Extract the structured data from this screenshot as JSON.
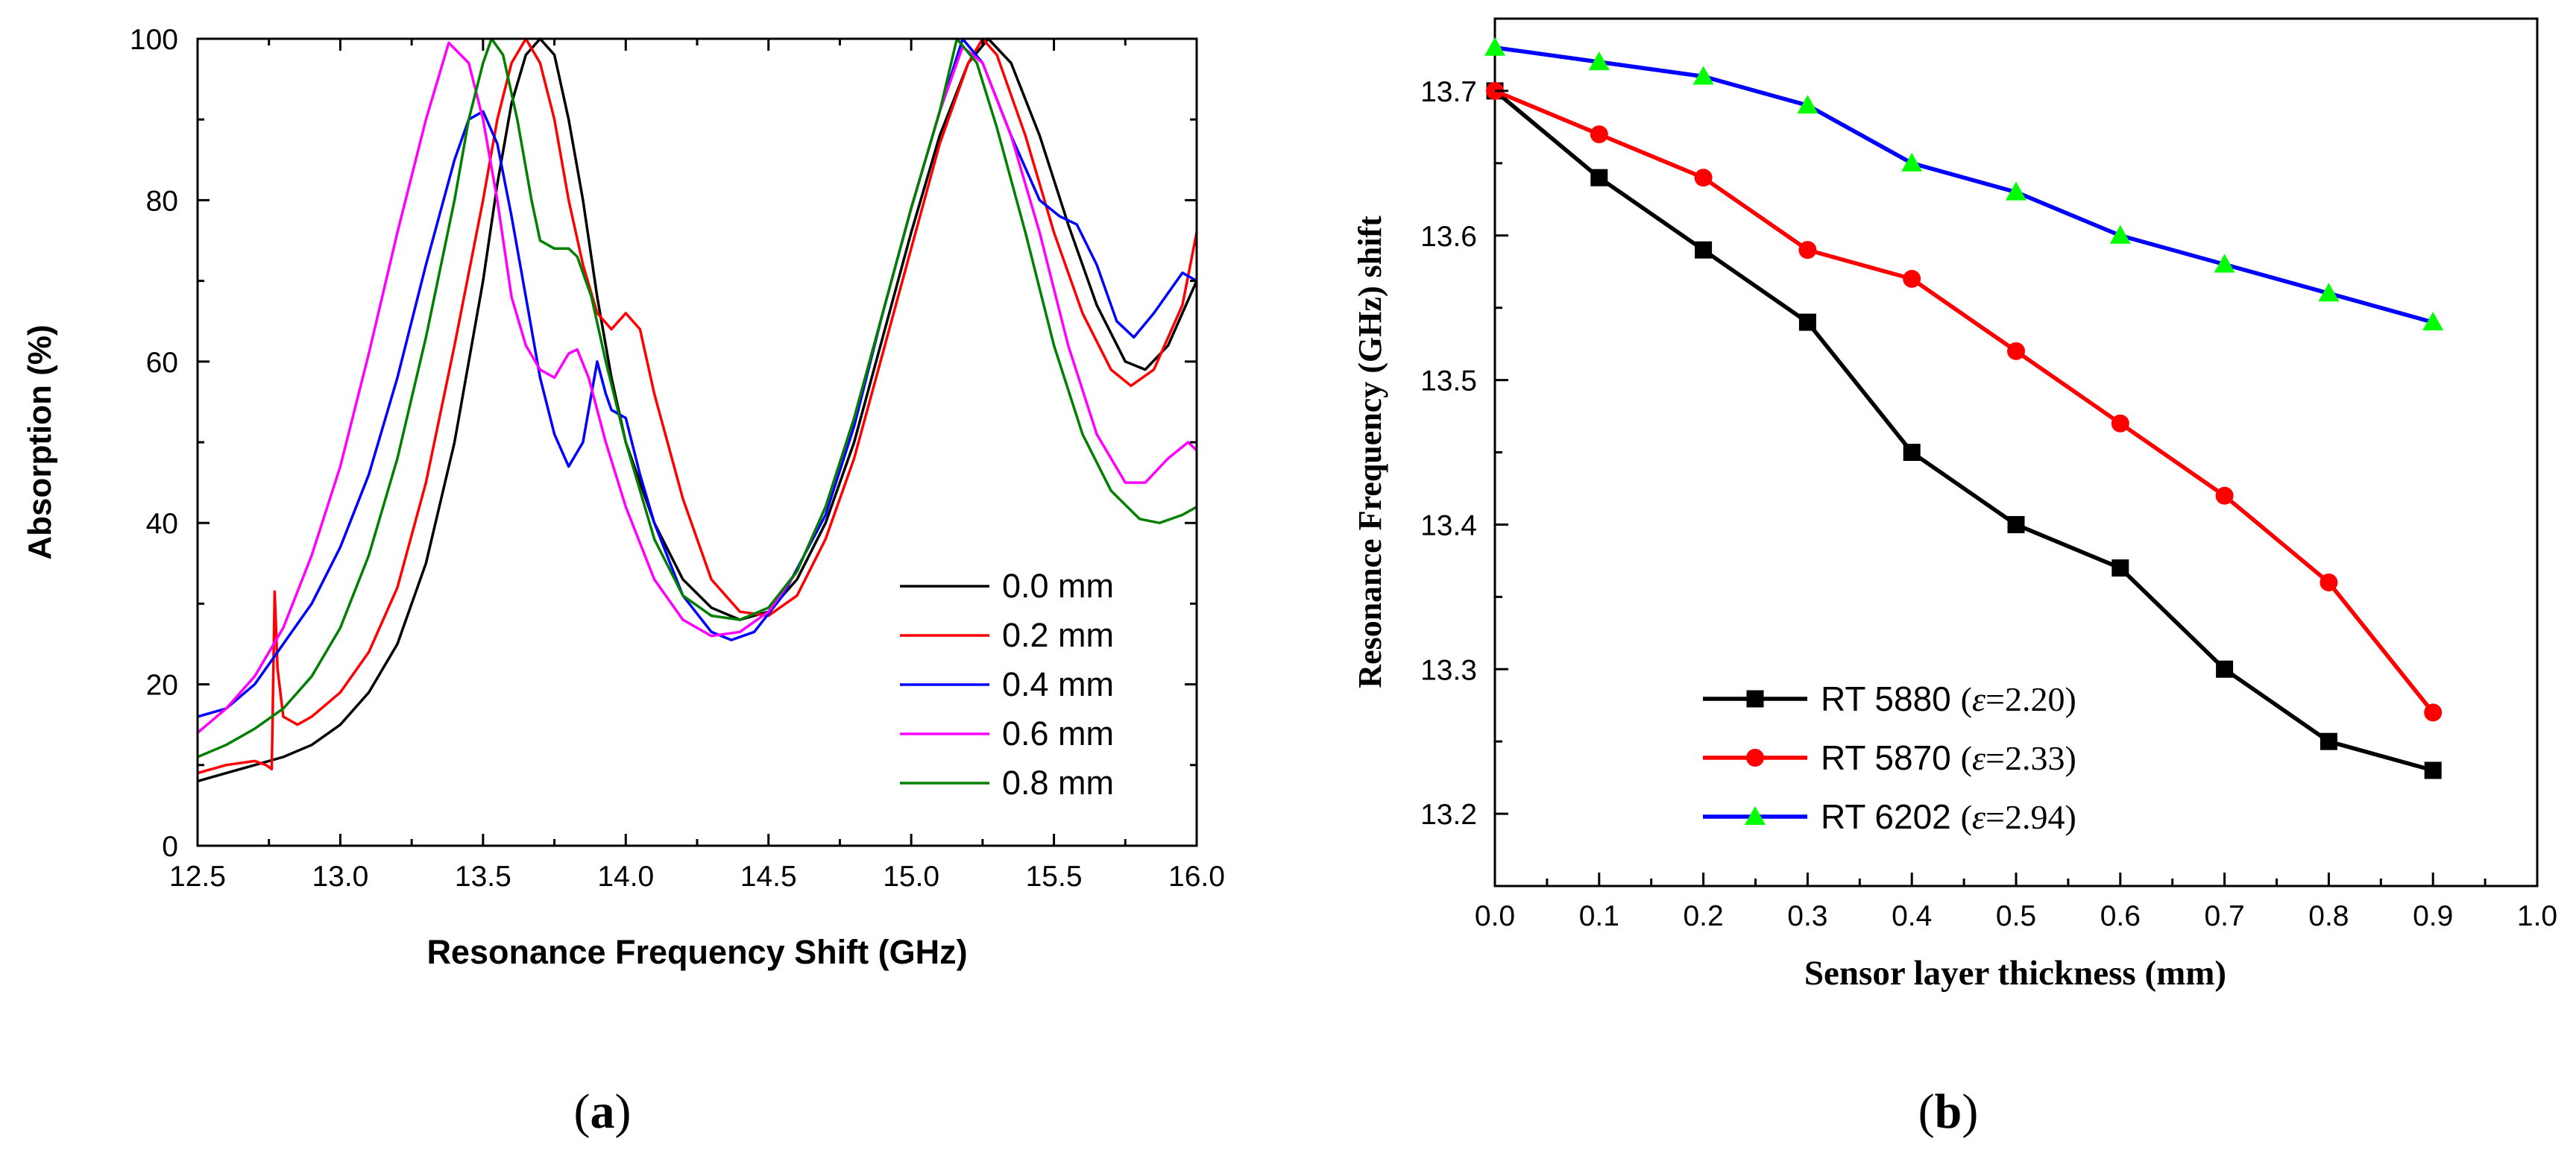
{
  "chart_data": [
    {
      "type": "line",
      "panel_label": "(a)",
      "panel_letter": "a",
      "title": "",
      "xlabel": "Resonance Frequency Shift (GHz)",
      "ylabel": "Absorption (%)",
      "xlim": [
        12.5,
        16.0
      ],
      "ylim": [
        0,
        100
      ],
      "xticks": [
        12.5,
        13.0,
        13.5,
        14.0,
        14.5,
        15.0,
        15.5,
        16.0
      ],
      "xtick_labels": [
        "12.5",
        "13.0",
        "13.5",
        "14.0",
        "14.5",
        "15.0",
        "15.5",
        "16.0"
      ],
      "yticks": [
        0,
        20,
        40,
        60,
        80,
        100
      ],
      "ytick_labels": [
        "0",
        "20",
        "40",
        "60",
        "80",
        "100"
      ],
      "legend_position": "center-right",
      "series": [
        {
          "name": "0.0 mm",
          "color": "#000000",
          "points": [
            [
              12.5,
              8
            ],
            [
              12.6,
              9
            ],
            [
              12.7,
              10
            ],
            [
              12.8,
              11
            ],
            [
              12.9,
              12.5
            ],
            [
              13.0,
              15
            ],
            [
              13.1,
              19
            ],
            [
              13.2,
              25
            ],
            [
              13.3,
              35
            ],
            [
              13.4,
              50
            ],
            [
              13.5,
              70
            ],
            [
              13.55,
              82
            ],
            [
              13.6,
              92
            ],
            [
              13.65,
              98
            ],
            [
              13.7,
              100
            ],
            [
              13.75,
              98
            ],
            [
              13.8,
              90
            ],
            [
              13.85,
              80
            ],
            [
              13.9,
              68
            ],
            [
              13.95,
              58
            ],
            [
              14.0,
              50
            ],
            [
              14.1,
              40
            ],
            [
              14.2,
              33
            ],
            [
              14.3,
              29.5
            ],
            [
              14.4,
              28
            ],
            [
              14.5,
              29
            ],
            [
              14.6,
              33
            ],
            [
              14.7,
              40
            ],
            [
              14.8,
              50
            ],
            [
              14.9,
              63
            ],
            [
              15.0,
              76
            ],
            [
              15.1,
              88
            ],
            [
              15.2,
              97
            ],
            [
              15.27,
              100
            ],
            [
              15.35,
              97
            ],
            [
              15.45,
              88
            ],
            [
              15.55,
              77
            ],
            [
              15.65,
              67
            ],
            [
              15.75,
              60
            ],
            [
              15.82,
              59
            ],
            [
              15.9,
              62
            ],
            [
              16.0,
              70
            ]
          ]
        },
        {
          "name": "0.2 mm",
          "color": "#ff0000",
          "points": [
            [
              12.5,
              9
            ],
            [
              12.6,
              10
            ],
            [
              12.7,
              10.5
            ],
            [
              12.74,
              10
            ],
            [
              12.76,
              9.5
            ],
            [
              12.77,
              31.5
            ],
            [
              12.78,
              22
            ],
            [
              12.8,
              16
            ],
            [
              12.85,
              15
            ],
            [
              12.9,
              16
            ],
            [
              13.0,
              19
            ],
            [
              13.1,
              24
            ],
            [
              13.2,
              32
            ],
            [
              13.3,
              45
            ],
            [
              13.4,
              62
            ],
            [
              13.5,
              80
            ],
            [
              13.55,
              90
            ],
            [
              13.6,
              97
            ],
            [
              13.65,
              100
            ],
            [
              13.7,
              97
            ],
            [
              13.75,
              90
            ],
            [
              13.8,
              80
            ],
            [
              13.85,
              72
            ],
            [
              13.9,
              66
            ],
            [
              13.95,
              64
            ],
            [
              14.0,
              66
            ],
            [
              14.05,
              64
            ],
            [
              14.1,
              56
            ],
            [
              14.2,
              43
            ],
            [
              14.3,
              33
            ],
            [
              14.4,
              29
            ],
            [
              14.5,
              28.5
            ],
            [
              14.6,
              31
            ],
            [
              14.7,
              38
            ],
            [
              14.8,
              48
            ],
            [
              14.9,
              61
            ],
            [
              15.0,
              74
            ],
            [
              15.1,
              87
            ],
            [
              15.2,
              97
            ],
            [
              15.25,
              100
            ],
            [
              15.3,
              98
            ],
            [
              15.4,
              88
            ],
            [
              15.5,
              76
            ],
            [
              15.6,
              66
            ],
            [
              15.7,
              59
            ],
            [
              15.77,
              57
            ],
            [
              15.85,
              59
            ],
            [
              15.95,
              67
            ],
            [
              16.0,
              76
            ]
          ]
        },
        {
          "name": "0.4 mm",
          "color": "#0000ff",
          "points": [
            [
              12.5,
              16
            ],
            [
              12.6,
              17
            ],
            [
              12.7,
              20
            ],
            [
              12.8,
              25
            ],
            [
              12.9,
              30
            ],
            [
              13.0,
              37
            ],
            [
              13.1,
              46
            ],
            [
              13.2,
              58
            ],
            [
              13.3,
              72
            ],
            [
              13.4,
              85
            ],
            [
              13.45,
              90
            ],
            [
              13.5,
              91
            ],
            [
              13.55,
              87
            ],
            [
              13.6,
              78
            ],
            [
              13.65,
              68
            ],
            [
              13.7,
              58
            ],
            [
              13.75,
              51
            ],
            [
              13.8,
              47
            ],
            [
              13.85,
              50
            ],
            [
              13.88,
              56
            ],
            [
              13.9,
              60
            ],
            [
              13.93,
              56
            ],
            [
              13.95,
              54
            ],
            [
              14.0,
              53
            ],
            [
              14.05,
              46
            ],
            [
              14.1,
              40
            ],
            [
              14.2,
              31
            ],
            [
              14.3,
              26.5
            ],
            [
              14.37,
              25.5
            ],
            [
              14.45,
              26.5
            ],
            [
              14.55,
              31
            ],
            [
              14.7,
              41
            ],
            [
              14.8,
              52
            ],
            [
              14.9,
              66
            ],
            [
              15.0,
              79
            ],
            [
              15.1,
              91
            ],
            [
              15.18,
              100
            ],
            [
              15.25,
              97
            ],
            [
              15.35,
              88
            ],
            [
              15.45,
              80
            ],
            [
              15.52,
              78
            ],
            [
              15.58,
              77
            ],
            [
              15.65,
              72
            ],
            [
              15.72,
              65
            ],
            [
              15.78,
              63
            ],
            [
              15.85,
              66
            ],
            [
              15.95,
              71
            ],
            [
              16.0,
              70
            ]
          ]
        },
        {
          "name": "0.6 mm",
          "color": "#ff00ff",
          "points": [
            [
              12.5,
              14
            ],
            [
              12.6,
              17
            ],
            [
              12.7,
              21
            ],
            [
              12.8,
              27
            ],
            [
              12.9,
              36
            ],
            [
              13.0,
              47
            ],
            [
              13.1,
              61
            ],
            [
              13.2,
              76
            ],
            [
              13.3,
              90
            ],
            [
              13.38,
              99.5
            ],
            [
              13.45,
              97
            ],
            [
              13.5,
              90
            ],
            [
              13.55,
              80
            ],
            [
              13.6,
              68
            ],
            [
              13.65,
              62
            ],
            [
              13.7,
              59
            ],
            [
              13.75,
              58
            ],
            [
              13.8,
              61
            ],
            [
              13.83,
              61.5
            ],
            [
              13.87,
              58
            ],
            [
              13.93,
              50
            ],
            [
              14.0,
              42
            ],
            [
              14.1,
              33
            ],
            [
              14.2,
              28
            ],
            [
              14.3,
              26
            ],
            [
              14.4,
              26.5
            ],
            [
              14.5,
              29
            ],
            [
              14.6,
              34
            ],
            [
              14.7,
              42
            ],
            [
              14.8,
              53
            ],
            [
              14.9,
              66
            ],
            [
              15.0,
              79
            ],
            [
              15.1,
              91
            ],
            [
              15.18,
              99
            ],
            [
              15.25,
              97
            ],
            [
              15.35,
              88
            ],
            [
              15.45,
              76
            ],
            [
              15.55,
              62
            ],
            [
              15.65,
              51
            ],
            [
              15.75,
              45
            ],
            [
              15.82,
              45
            ],
            [
              15.9,
              48
            ],
            [
              15.97,
              50
            ],
            [
              16.0,
              49
            ]
          ]
        },
        {
          "name": "0.8 mm",
          "color": "#008000",
          "points": [
            [
              12.5,
              11
            ],
            [
              12.6,
              12.5
            ],
            [
              12.7,
              14.5
            ],
            [
              12.8,
              17
            ],
            [
              12.9,
              21
            ],
            [
              13.0,
              27
            ],
            [
              13.1,
              36
            ],
            [
              13.2,
              48
            ],
            [
              13.3,
              63
            ],
            [
              13.4,
              80
            ],
            [
              13.45,
              90
            ],
            [
              13.5,
              97
            ],
            [
              13.53,
              100
            ],
            [
              13.57,
              98
            ],
            [
              13.62,
              90
            ],
            [
              13.67,
              80
            ],
            [
              13.7,
              75
            ],
            [
              13.75,
              74
            ],
            [
              13.8,
              74
            ],
            [
              13.83,
              73
            ],
            [
              13.88,
              68
            ],
            [
              13.93,
              60
            ],
            [
              14.0,
              50
            ],
            [
              14.1,
              38
            ],
            [
              14.2,
              31
            ],
            [
              14.3,
              28.5
            ],
            [
              14.4,
              28
            ],
            [
              14.5,
              29.5
            ],
            [
              14.6,
              34
            ],
            [
              14.7,
              42
            ],
            [
              14.8,
              53
            ],
            [
              14.9,
              66
            ],
            [
              15.0,
              79
            ],
            [
              15.1,
              91
            ],
            [
              15.16,
              100
            ],
            [
              15.23,
              97
            ],
            [
              15.3,
              89
            ],
            [
              15.4,
              76
            ],
            [
              15.5,
              62
            ],
            [
              15.6,
              51
            ],
            [
              15.7,
              44
            ],
            [
              15.8,
              40.5
            ],
            [
              15.87,
              40
            ],
            [
              15.95,
              41
            ],
            [
              16.0,
              42
            ]
          ]
        }
      ]
    },
    {
      "type": "line",
      "panel_label": "(b)",
      "panel_letter": "b",
      "title": "",
      "xlabel": "Sensor layer thickness (mm)",
      "ylabel": "Resonance Frequency (GHz) shift",
      "xlim": [
        0.0,
        1.0
      ],
      "ylim": [
        13.15,
        13.75
      ],
      "xticks": [
        0.0,
        0.1,
        0.2,
        0.3,
        0.4,
        0.5,
        0.6,
        0.7,
        0.8,
        0.9,
        1.0
      ],
      "xtick_labels": [
        "0.0",
        "0.1",
        "0.2",
        "0.3",
        "0.4",
        "0.5",
        "0.6",
        "0.7",
        "0.8",
        "0.9",
        "1.0"
      ],
      "yticks": [
        13.2,
        13.3,
        13.4,
        13.5,
        13.6,
        13.7
      ],
      "ytick_labels": [
        "13.2",
        "13.3",
        "13.4",
        "13.5",
        "13.6",
        "13.7"
      ],
      "legend_position": "bottom-left",
      "x": [
        0.0,
        0.1,
        0.2,
        0.3,
        0.4,
        0.5,
        0.6,
        0.7,
        0.8,
        0.9
      ],
      "series": [
        {
          "name": "RT 5880",
          "eps_symbol": "ε",
          "eps_value": "=2.20",
          "color": "#000000",
          "marker": "square",
          "marker_color": "#000000",
          "values": [
            13.7,
            13.64,
            13.59,
            13.54,
            13.45,
            13.4,
            13.37,
            13.3,
            13.25,
            13.23
          ]
        },
        {
          "name": "RT 5870",
          "eps_symbol": "ε",
          "eps_value": "=2.33",
          "color": "#ff0000",
          "marker": "circle",
          "marker_color": "#ff0000",
          "values": [
            13.7,
            13.67,
            13.64,
            13.59,
            13.57,
            13.52,
            13.47,
            13.42,
            13.36,
            13.27
          ]
        },
        {
          "name": "RT 6202",
          "eps_symbol": "ε",
          "eps_value": "=2.94",
          "color": "#0000ff",
          "marker": "triangle",
          "marker_color": "#00ff00",
          "values": [
            13.73,
            13.72,
            13.71,
            13.69,
            13.65,
            13.63,
            13.6,
            13.58,
            13.56,
            13.54
          ]
        }
      ]
    }
  ]
}
